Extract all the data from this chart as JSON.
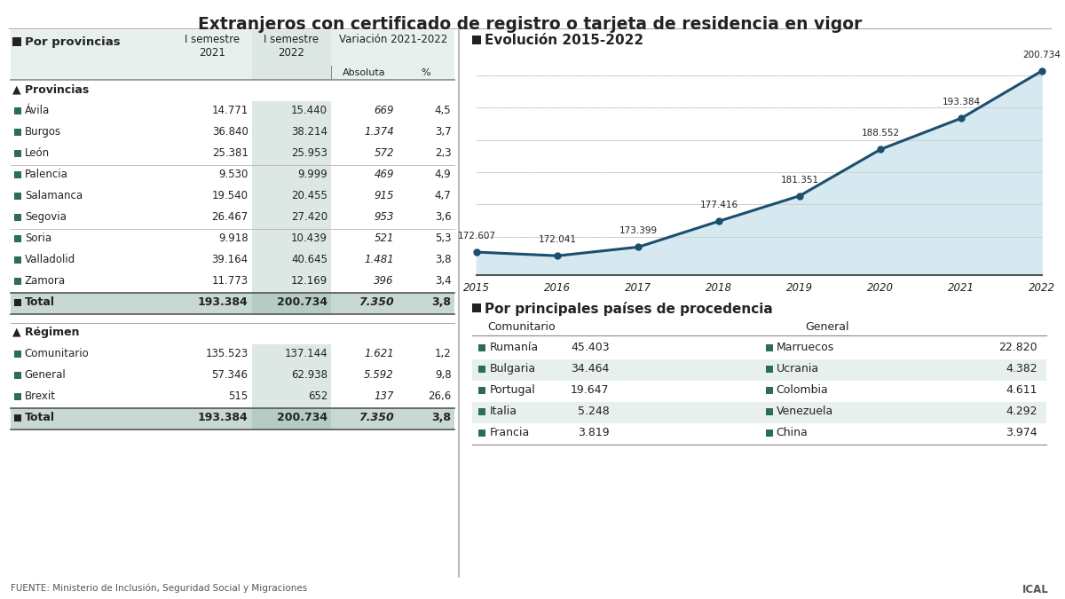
{
  "title": "Extranjeros con certificado de registro o tarjeta de residencia en vigor",
  "bg_color": "#ffffff",
  "header_bg": "#e8f0ee",
  "table_col2_bg": "#dde8e4",
  "total_row_bg": "#c8d8d2",
  "section_marker_color": "#2d6b5e",
  "source": "FUENTE: Ministerio de Inclusión, Seguridad Social y Migraciones",
  "credit": "ICAL",
  "left_table": {
    "header": [
      "Por provincias",
      "I semestre\n2021",
      "I semestre\n2022",
      "Variación 2021-2022",
      ""
    ],
    "subheader": [
      "",
      "",
      "",
      "Absoluta",
      "%"
    ],
    "section1_title": "Provincias",
    "provinces": [
      [
        "Ávila",
        "14.771",
        "15.440",
        "669",
        "4,5"
      ],
      [
        "Burgos",
        "36.840",
        "38.214",
        "1.374",
        "3,7"
      ],
      [
        "León",
        "25.381",
        "25.953",
        "572",
        "2,3"
      ],
      [
        "Palencia",
        "9.530",
        "9.999",
        "469",
        "4,9"
      ],
      [
        "Salamanca",
        "19.540",
        "20.455",
        "915",
        "4,7"
      ],
      [
        "Segovia",
        "26.467",
        "27.420",
        "953",
        "3,6"
      ],
      [
        "Soria",
        "9.918",
        "10.439",
        "521",
        "5,3"
      ],
      [
        "Valladolid",
        "39.164",
        "40.645",
        "1.481",
        "3,8"
      ],
      [
        "Zamora",
        "11.773",
        "12.169",
        "396",
        "3,4"
      ]
    ],
    "total1": [
      "Total",
      "193.384",
      "200.734",
      "7.350",
      "3,8"
    ],
    "section2_title": "Régimen",
    "regimen": [
      [
        "Comunitario",
        "135.523",
        "137.144",
        "1.621",
        "1,2"
      ],
      [
        "General",
        "57.346",
        "62.938",
        "5.592",
        "9,8"
      ],
      [
        "Brexit",
        "515",
        "652",
        "137",
        "26,6"
      ]
    ],
    "total2": [
      "Total",
      "193.384",
      "200.734",
      "7.350",
      "3,8"
    ]
  },
  "chart": {
    "title": "Evolución 2015-2022",
    "years": [
      2015,
      2016,
      2017,
      2018,
      2019,
      2020,
      2021,
      2022
    ],
    "values": [
      172607,
      172041,
      173399,
      177416,
      181351,
      188552,
      193384,
      200734
    ],
    "labels": [
      "172.607",
      "172.041",
      "173.399",
      "177.416",
      "181.351",
      "188.552",
      "193.384",
      "200.734"
    ],
    "line_color": "#1a4f6e",
    "fill_color": "#d6e8f0",
    "dot_color": "#1a4f6e"
  },
  "countries_table": {
    "title": "Por principales países de procedencia",
    "col1_header": "Comunitario",
    "col2_header": "General",
    "comunitario": [
      [
        "Rumanía",
        "45.403"
      ],
      [
        "Bulgaria",
        "34.464"
      ],
      [
        "Portugal",
        "19.647"
      ],
      [
        "Italia",
        "5.248"
      ],
      [
        "Francia",
        "3.819"
      ]
    ],
    "general": [
      [
        "Marruecos",
        "22.820"
      ],
      [
        "Ucrania",
        "4.382"
      ],
      [
        "Colombia",
        "4.611"
      ],
      [
        "Venezuela",
        "4.292"
      ],
      [
        "China",
        "3.974"
      ]
    ],
    "marker_color": "#2d6b5e"
  }
}
